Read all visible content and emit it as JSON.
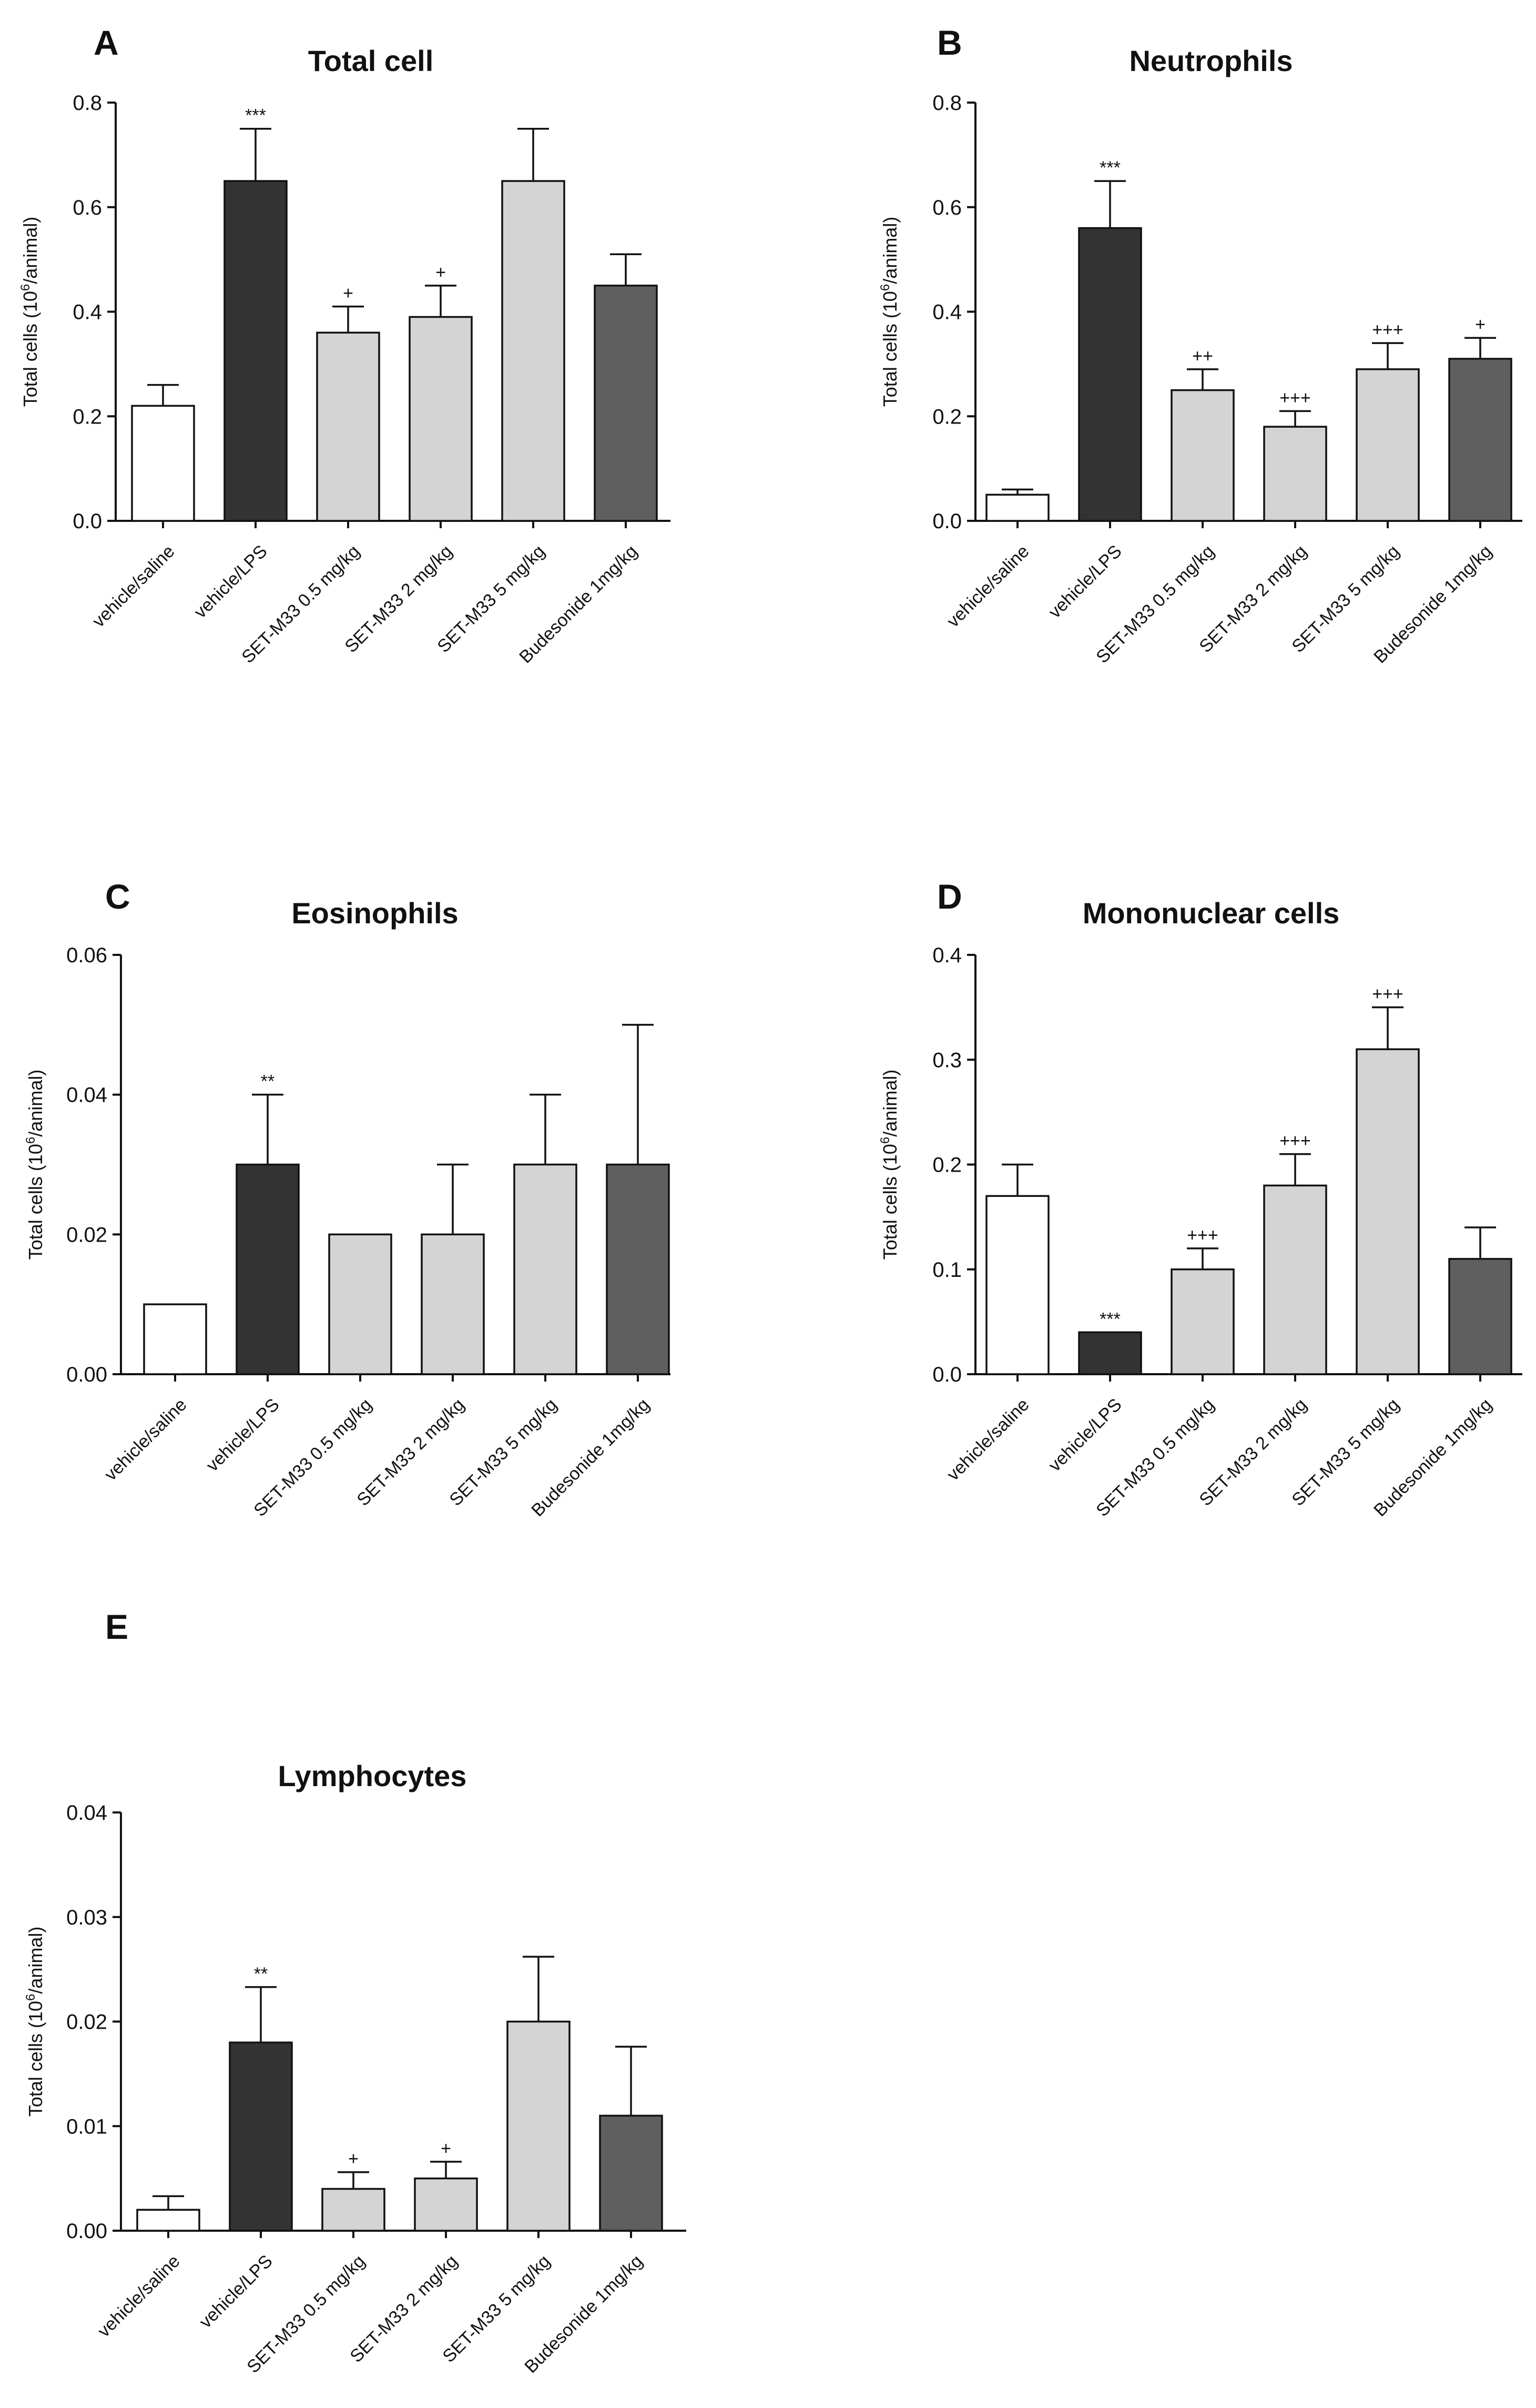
{
  "chart_data": [
    {
      "panel": "A",
      "type": "bar",
      "title": "Total cell",
      "ylabel": "Total cells (10⁶/animal)",
      "ylabel_main": "Total cells (10",
      "ylabel_sup": "6",
      "ylabel_tail": "/animal)",
      "ylim": [
        0,
        0.8
      ],
      "yticks": [
        "0.0",
        "0.2",
        "0.4",
        "0.6",
        "0.8"
      ],
      "categories": [
        "vehicle/saline",
        "vehicle/LPS",
        "SET-M33 0.5 mg/kg",
        "SET-M33 2 mg/kg",
        "SET-M33 5 mg/kg",
        "Budesonide 1mg/kg"
      ],
      "values": [
        0.22,
        0.65,
        0.36,
        0.39,
        0.65,
        0.45
      ],
      "errors": [
        0.04,
        0.1,
        0.05,
        0.06,
        0.1,
        0.06
      ],
      "annotations": [
        "",
        "***",
        "+",
        "+",
        "",
        ""
      ],
      "colors": [
        "#ffffff",
        "#333333",
        "#d4d4d4",
        "#d4d4d4",
        "#d4d4d4",
        "#5f5f5f"
      ]
    },
    {
      "panel": "B",
      "type": "bar",
      "title": "Neutrophils",
      "ylabel": "Total cells (10⁶/animal)",
      "ylabel_main": "Total cells (10",
      "ylabel_sup": "6",
      "ylabel_tail": "/animal)",
      "ylim": [
        0,
        0.8
      ],
      "yticks": [
        "0.0",
        "0.2",
        "0.4",
        "0.6",
        "0.8"
      ],
      "categories": [
        "vehicle/saline",
        "vehicle/LPS",
        "SET-M33 0.5 mg/kg",
        "SET-M33 2 mg/kg",
        "SET-M33 5 mg/kg",
        "Budesonide 1mg/kg"
      ],
      "values": [
        0.05,
        0.56,
        0.25,
        0.18,
        0.29,
        0.31
      ],
      "errors": [
        0.01,
        0.09,
        0.04,
        0.03,
        0.05,
        0.04
      ],
      "annotations": [
        "",
        "***",
        "++",
        "+++",
        "+++",
        "+"
      ],
      "colors": [
        "#ffffff",
        "#333333",
        "#d4d4d4",
        "#d4d4d4",
        "#d4d4d4",
        "#5f5f5f"
      ]
    },
    {
      "panel": "C",
      "type": "bar",
      "title": "Eosinophils",
      "ylabel": "Total cells (10⁶/animal)",
      "ylabel_main": "Total cells (10",
      "ylabel_sup": "6",
      "ylabel_tail": "/animal)",
      "ylim": [
        0,
        0.06
      ],
      "yticks": [
        "0.00",
        "0.02",
        "0.04",
        "0.06"
      ],
      "categories": [
        "vehicle/saline",
        "vehicle/LPS",
        "SET-M33 0.5 mg/kg",
        "SET-M33 2 mg/kg",
        "SET-M33 5 mg/kg",
        "Budesonide 1mg/kg"
      ],
      "values": [
        0.01,
        0.03,
        0.02,
        0.02,
        0.03,
        0.03
      ],
      "errors": [
        0,
        0.01,
        0,
        0.01,
        0.01,
        0.02
      ],
      "annotations": [
        "",
        "**",
        "",
        "",
        "",
        ""
      ],
      "colors": [
        "#ffffff",
        "#333333",
        "#d4d4d4",
        "#d4d4d4",
        "#d4d4d4",
        "#5f5f5f"
      ]
    },
    {
      "panel": "D",
      "type": "bar",
      "title": "Mononuclear cells",
      "ylabel": "Total cells (10⁶/animal)",
      "ylabel_main": "Total cells (10",
      "ylabel_sup": "6",
      "ylabel_tail": "/animal)",
      "ylim": [
        0,
        0.4
      ],
      "yticks": [
        "0.0",
        "0.1",
        "0.2",
        "0.3",
        "0.4"
      ],
      "categories": [
        "vehicle/saline",
        "vehicle/LPS",
        "SET-M33 0.5 mg/kg",
        "SET-M33 2 mg/kg",
        "SET-M33 5 mg/kg",
        "Budesonide 1mg/kg"
      ],
      "values": [
        0.17,
        0.04,
        0.1,
        0.18,
        0.31,
        0.11
      ],
      "errors": [
        0.03,
        0,
        0.02,
        0.03,
        0.04,
        0.03
      ],
      "annotations": [
        "",
        "***",
        "+++",
        "+++",
        "+++",
        ""
      ],
      "colors": [
        "#ffffff",
        "#333333",
        "#d4d4d4",
        "#d4d4d4",
        "#d4d4d4",
        "#5f5f5f"
      ]
    },
    {
      "panel": "E",
      "type": "bar",
      "title": "Lymphocytes",
      "ylabel": "Total cells (10⁶/animal)",
      "ylabel_main": "Total cells (10",
      "ylabel_sup": "6",
      "ylabel_tail": "/animal)",
      "ylim": [
        0,
        0.04
      ],
      "yticks": [
        "0.00",
        "0.01",
        "0.02",
        "0.03",
        "0.04"
      ],
      "categories": [
        "vehicle/saline",
        "vehicle/LPS",
        "SET-M33 0.5 mg/kg",
        "SET-M33 2 mg/kg",
        "SET-M33 5 mg/kg",
        "Budesonide 1mg/kg"
      ],
      "values": [
        0.002,
        0.018,
        0.004,
        0.005,
        0.02,
        0.011
      ],
      "errors": [
        0.0013,
        0.0053,
        0.0016,
        0.0016,
        0.0062,
        0.0066
      ],
      "annotations": [
        "",
        "**",
        "+",
        "+",
        "",
        ""
      ],
      "colors": [
        "#ffffff",
        "#333333",
        "#d4d4d4",
        "#d4d4d4",
        "#d4d4d4",
        "#5f5f5f"
      ]
    }
  ]
}
